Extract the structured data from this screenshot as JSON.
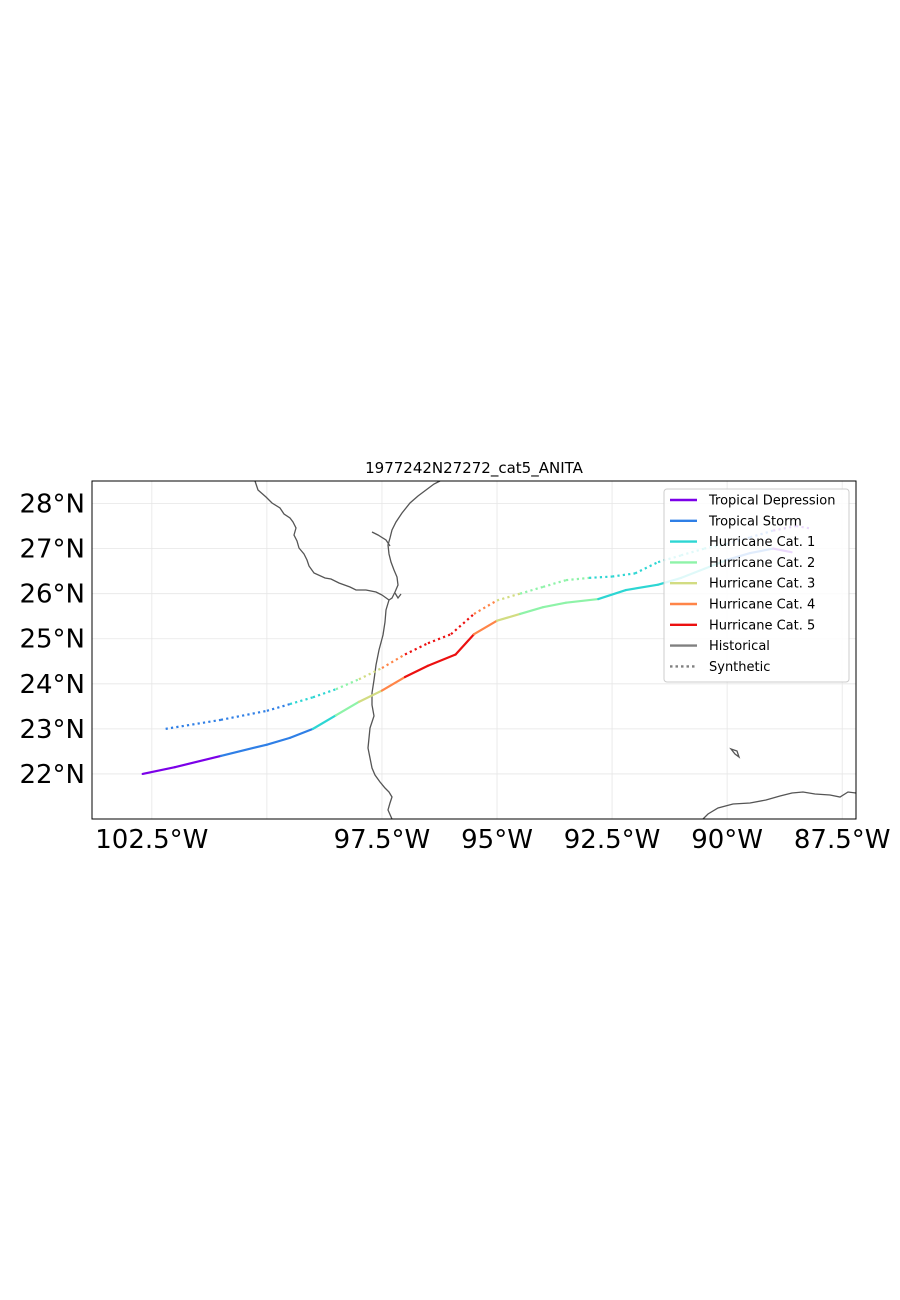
{
  "title": "1977242N27272_cat5_ANITA",
  "axes": {
    "x_range_lon": [
      -103.8,
      -87.2
    ],
    "y_range_lat": [
      21,
      28.5
    ],
    "x_ticks": [
      {
        "value": -102.5,
        "label": "102.5°W"
      },
      {
        "value": -97.5,
        "label": "97.5°W"
      },
      {
        "value": -95,
        "label": "95°W"
      },
      {
        "value": -92.5,
        "label": "92.5°W"
      },
      {
        "value": -90,
        "label": "90°W"
      },
      {
        "value": -87.5,
        "label": "87.5°W"
      }
    ],
    "y_ticks": [
      {
        "value": 22,
        "label": "22°N"
      },
      {
        "value": 23,
        "label": "23°N"
      },
      {
        "value": 24,
        "label": "24°N"
      },
      {
        "value": 25,
        "label": "25°N"
      },
      {
        "value": 26,
        "label": "26°N"
      },
      {
        "value": 27,
        "label": "27°N"
      },
      {
        "value": 28,
        "label": "28°N"
      }
    ],
    "gridlines": true
  },
  "colors": {
    "Tropical Depression": "#7b00e8",
    "Tropical Storm": "#2f7fe6",
    "Hurricane Cat. 1": "#2dd6d3",
    "Hurricane Cat. 2": "#8ef3a8",
    "Hurricane Cat. 3": "#d2dc82",
    "Hurricane Cat. 4": "#ff8548",
    "Hurricane Cat. 5": "#ec1010",
    "Historical": "#808080",
    "Synthetic": "#808080",
    "coast": "#555555"
  },
  "legend": {
    "placement": "top-right",
    "entries": [
      {
        "label": "Tropical Depression",
        "style": "solid",
        "color": "#7b00e8"
      },
      {
        "label": "Tropical Storm",
        "style": "solid",
        "color": "#2f7fe6"
      },
      {
        "label": "Hurricane Cat. 1",
        "style": "solid",
        "color": "#2dd6d3"
      },
      {
        "label": "Hurricane Cat. 2",
        "style": "solid",
        "color": "#8ef3a8"
      },
      {
        "label": "Hurricane Cat. 3",
        "style": "solid",
        "color": "#d2dc82"
      },
      {
        "label": "Hurricane Cat. 4",
        "style": "solid",
        "color": "#ff8548"
      },
      {
        "label": "Hurricane Cat. 5",
        "style": "solid",
        "color": "#ec1010"
      },
      {
        "label": "Historical",
        "style": "solid",
        "color": "#808080"
      },
      {
        "label": "Synthetic",
        "style": "dotted",
        "color": "#808080"
      }
    ]
  },
  "chart_data": {
    "type": "line",
    "tracks": [
      {
        "kind": "historical",
        "points": [
          [
            -102.7,
            22.0
          ],
          [
            -102.0,
            22.15
          ],
          [
            -101.0,
            22.4
          ],
          [
            -100.0,
            22.65
          ],
          [
            -99.5,
            22.8
          ],
          [
            -99.0,
            23.0
          ],
          [
            -98.5,
            23.3
          ],
          [
            -98.0,
            23.6
          ],
          [
            -97.5,
            23.85
          ],
          [
            -97.0,
            24.15
          ],
          [
            -96.5,
            24.4
          ],
          [
            -95.9,
            24.65
          ],
          [
            -95.5,
            25.1
          ],
          [
            -95.0,
            25.4
          ],
          [
            -94.5,
            25.55
          ],
          [
            -94.0,
            25.7
          ],
          [
            -93.5,
            25.8
          ],
          [
            -92.8,
            25.88
          ],
          [
            -92.2,
            26.08
          ],
          [
            -91.5,
            26.2
          ],
          [
            -91.0,
            26.35
          ],
          [
            -90.5,
            26.55
          ],
          [
            -90.0,
            26.75
          ],
          [
            -89.5,
            26.9
          ],
          [
            -89.0,
            27.0
          ],
          [
            -88.6,
            26.92
          ]
        ],
        "category_per_point": [
          "Tropical Depression",
          "Tropical Depression",
          "Tropical Storm",
          "Tropical Storm",
          "Tropical Storm",
          "Hurricane Cat. 1",
          "Hurricane Cat. 2",
          "Hurricane Cat. 3",
          "Hurricane Cat. 4",
          "Hurricane Cat. 5",
          "Hurricane Cat. 5",
          "Hurricane Cat. 5",
          "Hurricane Cat. 4",
          "Hurricane Cat. 3",
          "Hurricane Cat. 2",
          "Hurricane Cat. 2",
          "Hurricane Cat. 2",
          "Hurricane Cat. 1",
          "Hurricane Cat. 1",
          "Hurricane Cat. 1",
          "Hurricane Cat. 1",
          "Hurricane Cat. 1",
          "Tropical Storm",
          "Tropical Storm",
          "Tropical Depression",
          "Tropical Depression"
        ]
      },
      {
        "kind": "synthetic",
        "points": [
          [
            -102.2,
            23.0
          ],
          [
            -101.0,
            23.2
          ],
          [
            -100.0,
            23.4
          ],
          [
            -99.5,
            23.55
          ],
          [
            -99.0,
            23.7
          ],
          [
            -98.5,
            23.88
          ],
          [
            -98.0,
            24.1
          ],
          [
            -97.5,
            24.35
          ],
          [
            -97.0,
            24.65
          ],
          [
            -96.5,
            24.9
          ],
          [
            -96.0,
            25.1
          ],
          [
            -95.5,
            25.55
          ],
          [
            -95.0,
            25.85
          ],
          [
            -94.5,
            26.0
          ],
          [
            -94.0,
            26.15
          ],
          [
            -93.5,
            26.3
          ],
          [
            -93.0,
            26.35
          ],
          [
            -92.5,
            26.38
          ],
          [
            -92.0,
            26.45
          ],
          [
            -91.5,
            26.7
          ],
          [
            -91.0,
            26.85
          ],
          [
            -90.5,
            27.0
          ],
          [
            -90.0,
            27.1
          ],
          [
            -89.5,
            27.25
          ],
          [
            -89.0,
            27.4
          ],
          [
            -88.5,
            27.5
          ],
          [
            -88.2,
            27.45
          ]
        ],
        "category_per_point": [
          "Tropical Storm",
          "Tropical Storm",
          "Tropical Storm",
          "Hurricane Cat. 1",
          "Hurricane Cat. 1",
          "Hurricane Cat. 2",
          "Hurricane Cat. 3",
          "Hurricane Cat. 4",
          "Hurricane Cat. 5",
          "Hurricane Cat. 5",
          "Hurricane Cat. 5",
          "Hurricane Cat. 4",
          "Hurricane Cat. 3",
          "Hurricane Cat. 2",
          "Hurricane Cat. 2",
          "Hurricane Cat. 2",
          "Hurricane Cat. 1",
          "Hurricane Cat. 1",
          "Hurricane Cat. 1",
          "Hurricane Cat. 1",
          "Hurricane Cat. 1",
          "Hurricane Cat. 1",
          "Tropical Storm",
          "Tropical Storm",
          "Tropical Depression",
          "Tropical Depression",
          "Tropical Depression"
        ]
      }
    ]
  }
}
